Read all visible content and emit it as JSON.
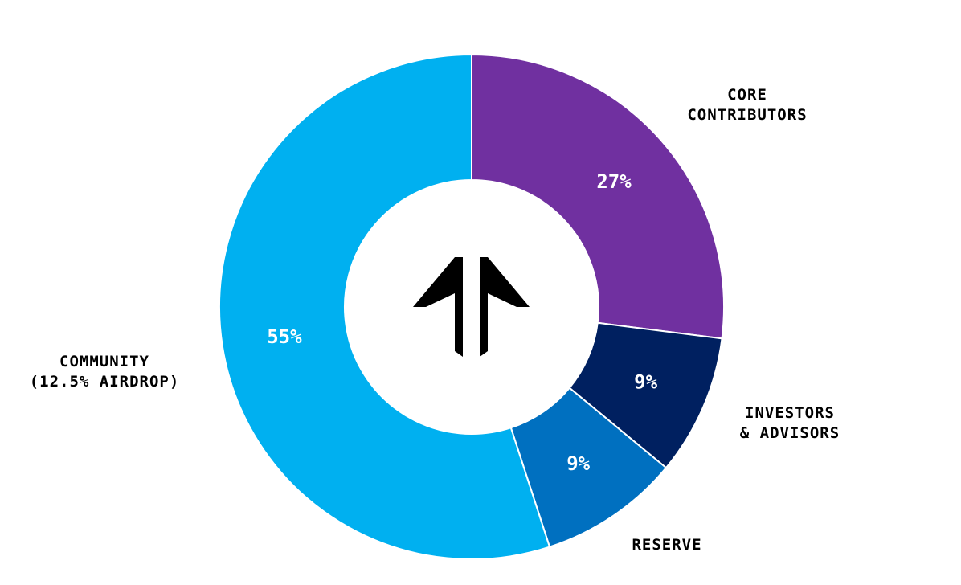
{
  "chart_data": {
    "type": "pie",
    "donut": true,
    "slices": [
      {
        "label_lines": [
          "CORE",
          "CONTRIBUTORS"
        ],
        "value": 27,
        "value_label": "27%",
        "color": "#7030A0"
      },
      {
        "label_lines": [
          "INVESTORS",
          "& ADVISORS"
        ],
        "value": 9,
        "value_label": "9%",
        "color": "#002060"
      },
      {
        "label_lines": [
          "RESERVE"
        ],
        "value": 9,
        "value_label": "9%",
        "color": "#0070C0"
      },
      {
        "label_lines": [
          "COMMUNITY",
          "(12.5% AIRDROP)"
        ],
        "value": 55,
        "value_label": "55%",
        "color": "#00B0F0"
      }
    ],
    "center_icon": "double-up-arrow-logo-icon",
    "legend": "none"
  }
}
